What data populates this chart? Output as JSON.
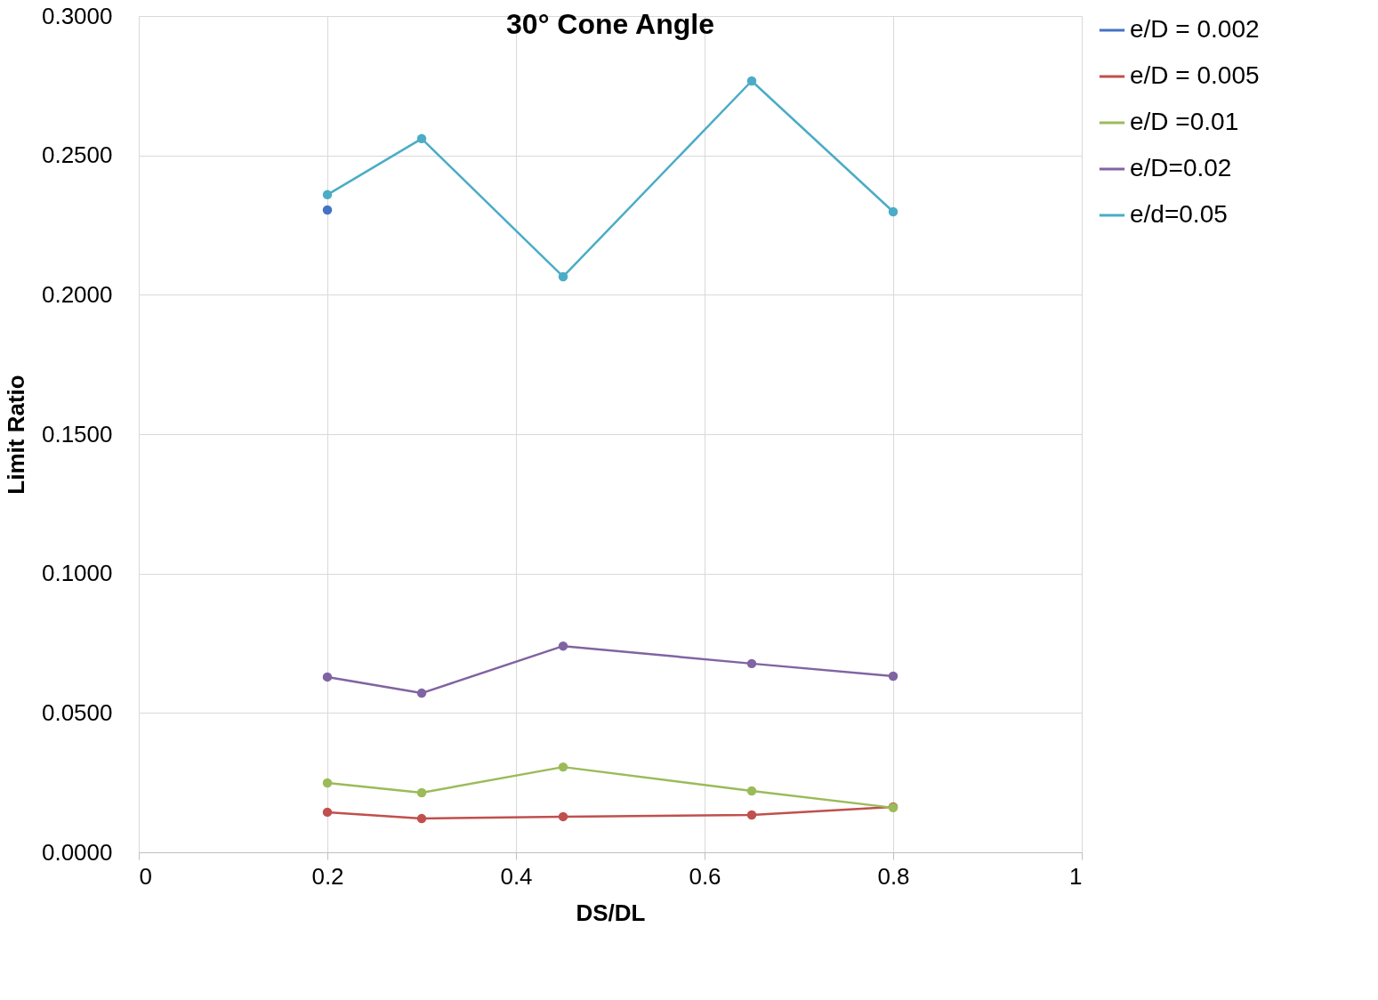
{
  "chart_data": {
    "type": "line",
    "title": "30° Cone Angle",
    "xlabel": "DS/DL",
    "ylabel": "Limit Ratio",
    "x": [
      0.2,
      0.3,
      0.45,
      0.65,
      0.8
    ],
    "series": [
      {
        "name": "e/D = 0.002",
        "color": "#4472c4",
        "values": [
          0.2304,
          null,
          null,
          null,
          null
        ]
      },
      {
        "name": "e/D = 0.005",
        "color": "#c0504d",
        "values": [
          0.0144,
          0.0121,
          0.0128,
          0.0134,
          0.0163
        ]
      },
      {
        "name": "e/D =0.01",
        "color": "#9bbb59",
        "values": [
          0.0249,
          0.0214,
          0.0306,
          0.022,
          0.016
        ]
      },
      {
        "name": "e/D=0.02",
        "color": "#8064a2",
        "values": [
          0.0629,
          0.0571,
          0.074,
          0.0677,
          0.0632
        ]
      },
      {
        "name": "e/d=0.05",
        "color": "#4bacc6",
        "values": [
          0.2359,
          0.256,
          0.2065,
          0.2767,
          0.2298
        ]
      }
    ],
    "xlim": [
      0,
      1
    ],
    "xticks": [
      0,
      0.2,
      0.4,
      0.6,
      0.8,
      1
    ],
    "ylim": [
      0,
      0.3
    ],
    "yticks": [
      {
        "value": 0,
        "label": "0.0000"
      },
      {
        "value": 0.05,
        "label": "0.0500"
      },
      {
        "value": 0.1,
        "label": "0.1000"
      },
      {
        "value": 0.15,
        "label": "0.1500"
      },
      {
        "value": 0.2,
        "label": "0.2000"
      },
      {
        "value": 0.25,
        "label": "0.2500"
      },
      {
        "value": 0.3,
        "label": "0.3000"
      }
    ],
    "grid": true,
    "legend": "right",
    "marker": "circle",
    "line_style": "solid"
  }
}
